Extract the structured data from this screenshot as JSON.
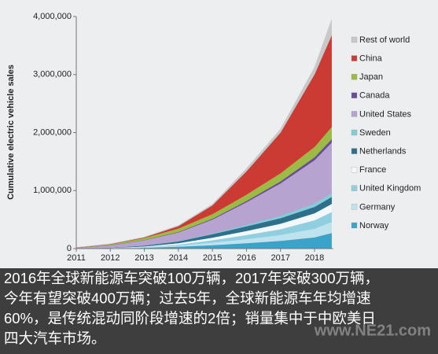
{
  "chart_data": {
    "type": "stacked-area",
    "y_label": "Cumulative electric vehicle sales",
    "x": [
      2011,
      2012,
      2013,
      2014,
      2015,
      2016,
      2017,
      2018,
      2018.5
    ],
    "xlim": [
      2011,
      2018.55
    ],
    "xticks": [
      2011,
      2012,
      2013,
      2014,
      2015,
      2016,
      2017,
      2018
    ],
    "ylim": [
      0,
      4000000
    ],
    "yticks": [
      0,
      {
        "value": 1000000,
        "label": "1,000,000"
      },
      {
        "value": 2000000,
        "label": "2,000,000"
      },
      {
        "value": 3000000,
        "label": "3,000,000"
      },
      {
        "value": 4000000,
        "label": "4,000,000"
      }
    ],
    "series": [
      {
        "name": "Norway",
        "color": "#3ba3c9",
        "values": [
          1000,
          5000,
          15000,
          35000,
          60000,
          95000,
          135000,
          195000,
          270000
        ]
      },
      {
        "name": "Germany",
        "color": "#bfe3ee",
        "values": [
          1000,
          3000,
          8000,
          20000,
          45000,
          70000,
          100000,
          150000,
          190000
        ]
      },
      {
        "name": "United Kingdom",
        "color": "#8fcfe0",
        "values": [
          1000,
          2000,
          5000,
          15000,
          40000,
          70000,
          100000,
          145000,
          170000
        ]
      },
      {
        "name": "France",
        "color": "#f2f8fb",
        "values": [
          1000,
          3000,
          10000,
          25000,
          45000,
          70000,
          95000,
          120000,
          140000
        ]
      },
      {
        "name": "Netherlands",
        "color": "#2e6f8b",
        "values": [
          0,
          3000,
          15000,
          30000,
          60000,
          80000,
          95000,
          110000,
          120000
        ]
      },
      {
        "name": "Sweden",
        "color": "#7fcfd8",
        "values": [
          0,
          1000,
          2000,
          5000,
          12000,
          25000,
          40000,
          55000,
          65000
        ]
      },
      {
        "name": "United States",
        "color": "#b7a3cf",
        "values": [
          10000,
          40000,
          90000,
          150000,
          240000,
          390000,
          560000,
          750000,
          870000
        ]
      },
      {
        "name": "Canada",
        "color": "#6a4c9c",
        "values": [
          0,
          2000,
          4000,
          8000,
          14000,
          22000,
          35000,
          50000,
          60000
        ]
      },
      {
        "name": "Japan",
        "color": "#9bbb45",
        "values": [
          3000,
          15000,
          35000,
          60000,
          80000,
          110000,
          140000,
          180000,
          210000
        ]
      },
      {
        "name": "China",
        "color": "#cc3b33",
        "values": [
          2000,
          5000,
          10000,
          40000,
          150000,
          400000,
          700000,
          1250000,
          1580000
        ]
      },
      {
        "name": "Rest of world",
        "color": "#c8c8c8",
        "values": [
          1000,
          3000,
          6000,
          12000,
          20000,
          50000,
          60000,
          120000,
          270000
        ]
      }
    ]
  },
  "caption": {
    "lines": [
      "2016年全球新能源车突破100万辆，2017年突破300万辆，",
      "今年有望突破400万辆；过去5年，全球新能源车年均增速",
      "60%，是传统混动同阶段增速的2倍；销量集中于中欧美日",
      "四大汽车市场。"
    ]
  },
  "watermark": "www.NE21.com"
}
